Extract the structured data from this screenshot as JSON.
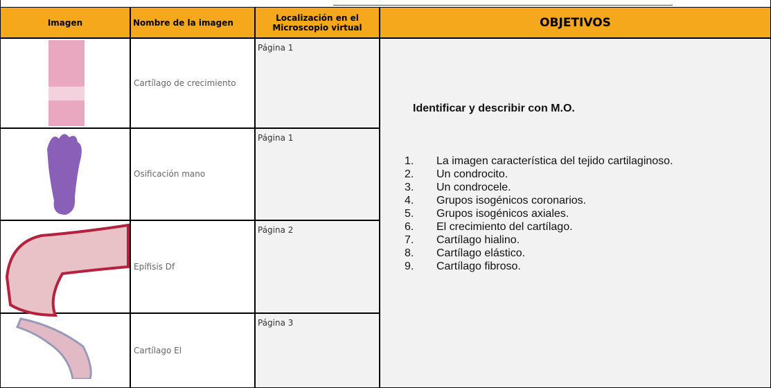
{
  "header": {
    "columns": [
      "Imagen",
      "Nombre de la imagen",
      [
        "Localización en el",
        "Microscopio virtual"
      ],
      "OBJETIVOS"
    ]
  },
  "rows": [
    {
      "name": "Cartílago de crecimiento",
      "location": "Página 1"
    },
    {
      "name": "Osificación mano",
      "location": "Página 1"
    },
    {
      "name": "Epífisis Df",
      "location": "Página 2"
    },
    {
      "name": "Cartílago El",
      "location": "Página 3"
    }
  ],
  "objectives": {
    "heading": "Identificar y describir con M.O.",
    "items": [
      {
        "number": "1.",
        "text": "La imagen característica del tejido cartilaginoso."
      },
      {
        "number": "2.",
        "text": "Un condrocito."
      },
      {
        "number": "3.",
        "text": "Un condrocele."
      },
      {
        "number": "4.",
        "text": "Grupos isogénicos coronarios."
      },
      {
        "number": "5.",
        "text": "Grupos isogénicos axiales."
      },
      {
        "number": "6.",
        "text": "El crecimiento del cartílago."
      },
      {
        "number": "7.",
        "text": "Cartílago hialino."
      },
      {
        "number": "8.",
        "text": "Cartílago elástico."
      },
      {
        "number": "9.",
        "text": "Cartílago fibroso."
      }
    ]
  }
}
